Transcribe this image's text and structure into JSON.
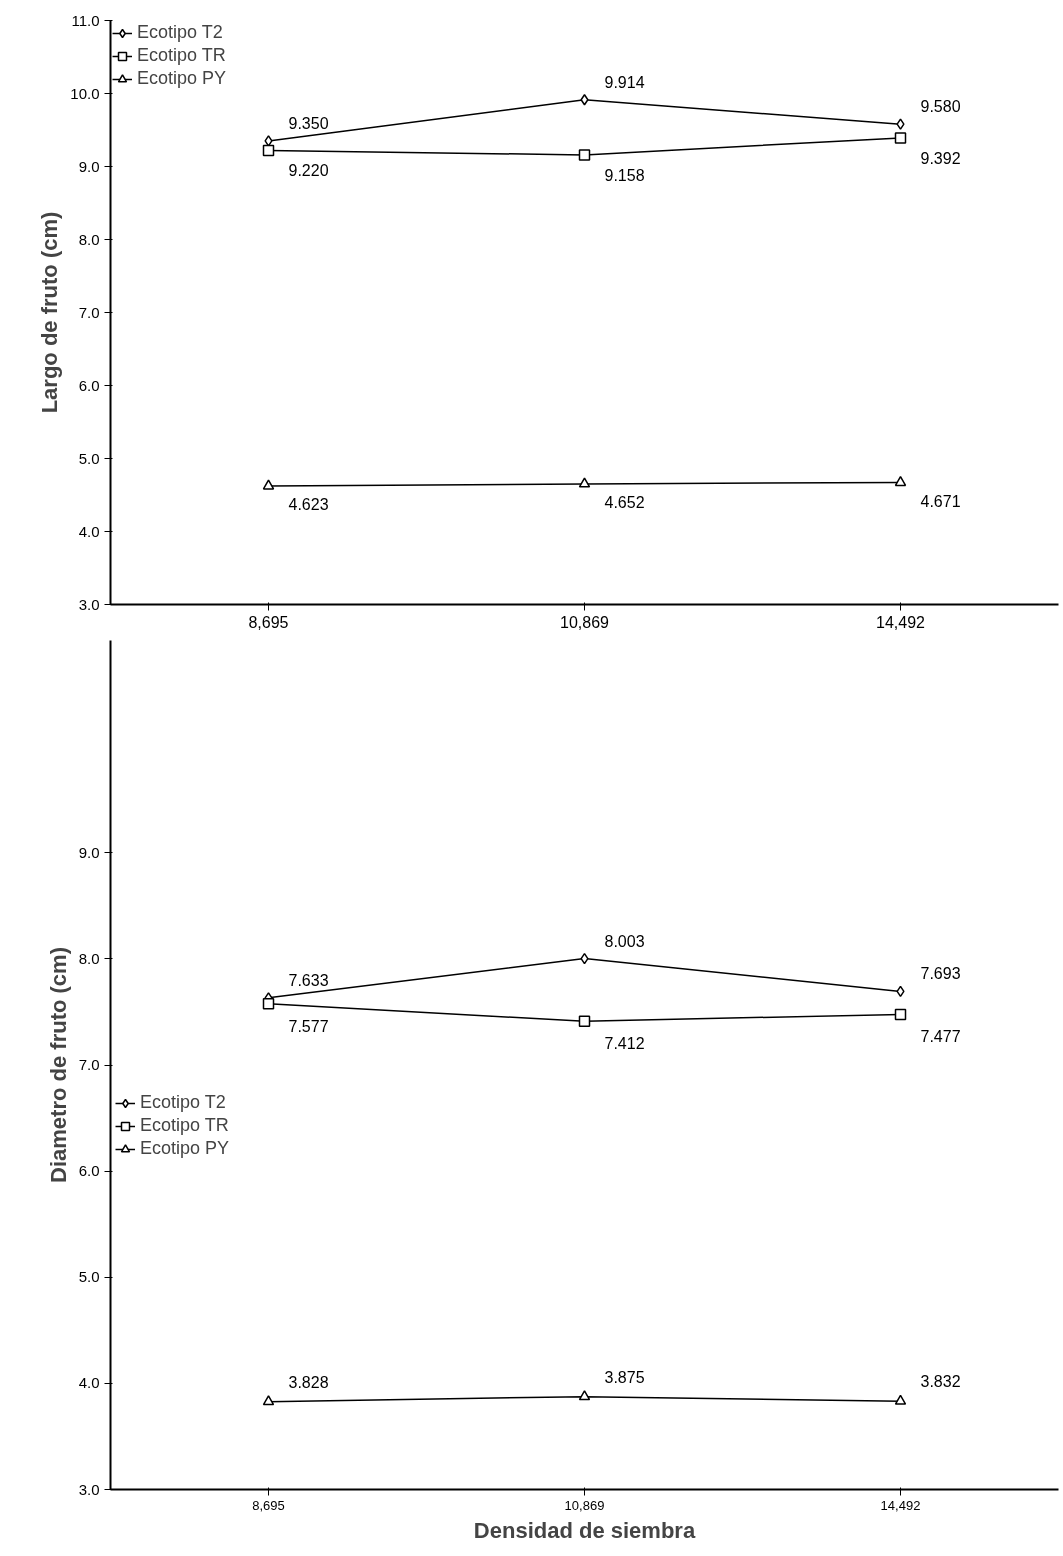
{
  "chart_data": [
    {
      "type": "line",
      "ylabel": "Largo de fruto (cm)",
      "categories": [
        "8,695",
        "10,869",
        "14,492"
      ],
      "ylim": [
        3.0,
        11.0
      ],
      "yticks": [
        {
          "value": 3,
          "label": "3.0"
        },
        {
          "value": 4,
          "label": "4.0"
        },
        {
          "value": 5,
          "label": "5.0"
        },
        {
          "value": 6,
          "label": "6.0"
        },
        {
          "value": 7,
          "label": "7.0"
        },
        {
          "value": 8,
          "label": "8.0"
        },
        {
          "value": 9,
          "label": "9.0"
        },
        {
          "value": 10,
          "label": "10.0"
        },
        {
          "value": 11,
          "label": "11.0"
        }
      ],
      "series": [
        {
          "name": "Ecotipo T2",
          "color": "#000000",
          "marker": "diamond",
          "values": [
            9.35,
            9.914,
            9.58
          ],
          "value_labels": [
            "9.350",
            "9.914",
            "9.580"
          ]
        },
        {
          "name": "Ecotipo TR",
          "color": "#000000",
          "marker": "square",
          "values": [
            9.22,
            9.158,
            9.392
          ],
          "value_labels": [
            "9.220",
            "9.158",
            "9.392"
          ]
        },
        {
          "name": "Ecotipo PY",
          "color": "#000000",
          "marker": "triangle",
          "values": [
            4.623,
            4.652,
            4.671
          ],
          "value_labels": [
            "4.623",
            "4.652",
            "4.671"
          ]
        }
      ],
      "legend": "top left",
      "grid": false
    },
    {
      "type": "line",
      "ylabel": "Diametro de fruto (cm)",
      "xlabel": "Densidad de siembra",
      "categories": [
        "8,695",
        "10,869",
        "14,492"
      ],
      "ylim": [
        3.0,
        11.0
      ],
      "yticks": [
        {
          "value": 3,
          "label": "3.0"
        },
        {
          "value": 4,
          "label": "4.0"
        },
        {
          "value": 5,
          "label": "5.0"
        },
        {
          "value": 6,
          "label": "6.0"
        },
        {
          "value": 7,
          "label": "7.0"
        },
        {
          "value": 8,
          "label": "8.0"
        },
        {
          "value": 9,
          "label": "9.0"
        }
      ],
      "series": [
        {
          "name": "Ecotipo T2",
          "color": "#000000",
          "marker": "diamond",
          "values": [
            7.633,
            8.003,
            7.693
          ],
          "value_labels": [
            "7.633",
            "8.003",
            "7.693"
          ]
        },
        {
          "name": "Ecotipo TR",
          "color": "#000000",
          "marker": "square",
          "values": [
            7.577,
            7.412,
            7.477
          ],
          "value_labels": [
            "7.577",
            "7.412",
            "7.477"
          ]
        },
        {
          "name": "Ecotipo PY",
          "color": "#000000",
          "marker": "triangle",
          "values": [
            3.828,
            3.875,
            3.832
          ],
          "value_labels": [
            "3.828",
            "3.875",
            "3.832"
          ]
        }
      ],
      "legend": "left",
      "grid": false
    }
  ]
}
